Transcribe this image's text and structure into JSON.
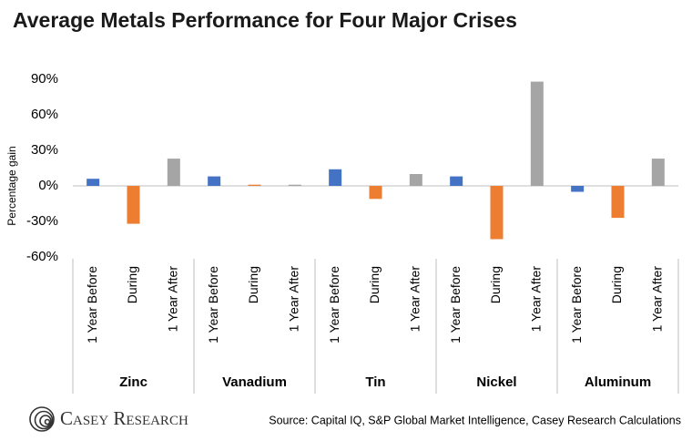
{
  "chart_data": {
    "type": "bar",
    "title": "Average Metals Performance for Four Major Crises",
    "y_label": "Percentage gain",
    "categories": [
      "Zinc",
      "Vanadium",
      "Tin",
      "Nickel",
      "Aluminum"
    ],
    "series": [
      {
        "name": "1 Year Before",
        "color": "#4472c4",
        "values": [
          6,
          8,
          14,
          8,
          -5
        ]
      },
      {
        "name": "During",
        "color": "#ed7d31",
        "values": [
          -32,
          1,
          -11,
          -45,
          -27
        ]
      },
      {
        "name": "1 Year After",
        "color": "#a5a5a5",
        "values": [
          23,
          1,
          10,
          88,
          23
        ]
      }
    ],
    "ylim": [
      -60,
      90
    ],
    "yticks": [
      {
        "value": -60,
        "label": "-60%"
      },
      {
        "value": -30,
        "label": "-30%"
      },
      {
        "value": 0,
        "label": "0%"
      },
      {
        "value": 30,
        "label": "30%"
      },
      {
        "value": 60,
        "label": "60%"
      },
      {
        "value": 90,
        "label": "90%"
      }
    ],
    "grid": false,
    "source": "Source: Capital IQ, S&P Global Market Intelligence, Casey Research Calculations",
    "logo": "Casey Research"
  }
}
